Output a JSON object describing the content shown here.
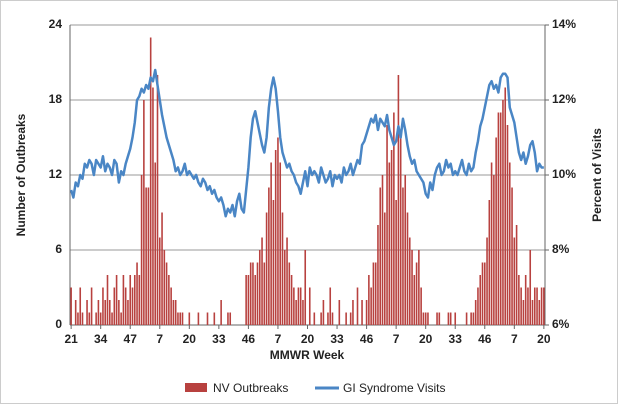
{
  "chart_data": {
    "type": "bar-line",
    "x_label": "MMWR Week",
    "y_label": "Number of Outbreaks",
    "y2_label": "Percent of Visits",
    "categories": [
      "21",
      null,
      null,
      null,
      null,
      null,
      null,
      null,
      null,
      null,
      null,
      null,
      null,
      "34",
      null,
      null,
      null,
      null,
      null,
      null,
      null,
      null,
      null,
      null,
      null,
      null,
      "47",
      null,
      null,
      null,
      null,
      null,
      null,
      null,
      null,
      null,
      null,
      null,
      null,
      "7",
      null,
      null,
      null,
      null,
      null,
      null,
      null,
      null,
      null,
      null,
      null,
      null,
      "20",
      null,
      null,
      null,
      null,
      null,
      null,
      null,
      null,
      null,
      null,
      null,
      null,
      "33",
      null,
      null,
      null,
      null,
      null,
      null,
      null,
      null,
      null,
      null,
      null,
      null,
      "46",
      null,
      null,
      null,
      null,
      null,
      null,
      null,
      null,
      null,
      null,
      null,
      null,
      "7",
      null,
      null,
      null,
      null,
      null,
      null,
      null,
      null,
      null,
      null,
      null,
      null,
      "20",
      null,
      null,
      null,
      null,
      null,
      null,
      null,
      null,
      null,
      null,
      null,
      null,
      "33",
      null,
      null,
      null,
      null,
      null,
      null,
      null,
      null,
      null,
      null,
      null,
      null,
      "46",
      null,
      null,
      null,
      null,
      null,
      null,
      null,
      null,
      null,
      null,
      null,
      null,
      "7",
      null,
      null,
      null,
      null,
      null,
      null,
      null,
      null,
      null,
      null,
      null,
      null,
      "20",
      null,
      null,
      null,
      null,
      null,
      null,
      null,
      null,
      null,
      null,
      null,
      null,
      "33",
      null,
      null,
      null,
      null,
      null,
      null,
      null,
      null,
      null,
      null,
      null,
      null,
      "46",
      null,
      null,
      null,
      null,
      null,
      null,
      null,
      null,
      null,
      null,
      null,
      null,
      "7",
      null,
      null,
      null,
      null,
      null,
      null,
      null,
      null,
      null,
      null,
      null,
      null,
      "20"
    ],
    "ylim": [
      0,
      24
    ],
    "yticks": [
      0,
      6,
      12,
      18,
      24
    ],
    "y2lim": [
      6,
      14
    ],
    "y2ticks": [
      {
        "value": 6,
        "label": "6%"
      },
      {
        "value": 8,
        "label": "8%"
      },
      {
        "value": 10,
        "label": "10%"
      },
      {
        "value": 12,
        "label": "12%"
      },
      {
        "value": 14,
        "label": "14%"
      }
    ],
    "grid": true,
    "legend": "bottom",
    "series": [
      {
        "name": "NV Outbreaks",
        "type": "bar",
        "color": "#b8413f",
        "values": [
          3,
          0,
          2,
          1,
          3,
          1,
          0,
          2,
          1,
          3,
          0,
          1,
          2,
          1,
          3,
          2,
          4,
          2,
          1,
          3,
          4,
          2,
          1,
          4,
          3,
          2,
          4,
          3,
          4,
          5,
          4,
          12,
          18,
          11,
          11,
          23,
          19,
          13,
          20,
          7,
          9,
          6,
          5,
          4,
          3,
          2,
          2,
          1,
          1,
          1,
          0,
          0,
          1,
          0,
          0,
          0,
          1,
          0,
          0,
          0,
          1,
          0,
          0,
          1,
          0,
          0,
          2,
          0,
          0,
          1,
          1,
          0,
          0,
          0,
          0,
          0,
          0,
          4,
          4,
          5,
          5,
          4,
          5,
          6,
          7,
          5,
          9,
          11,
          13,
          10,
          14,
          15,
          13,
          9,
          6,
          7,
          5,
          4,
          3,
          2,
          3,
          3,
          2,
          6,
          0,
          3,
          0,
          1,
          0,
          0,
          1,
          2,
          0,
          1,
          3,
          1,
          0,
          0,
          2,
          0,
          0,
          1,
          0,
          1,
          2,
          0,
          3,
          0,
          2,
          0,
          2,
          4,
          3,
          5,
          5,
          8,
          11,
          12,
          9,
          16,
          13,
          14,
          17,
          10,
          20,
          15,
          11,
          12,
          9,
          7,
          6,
          4,
          5,
          6,
          3,
          1,
          1,
          1,
          0,
          0,
          0,
          1,
          1,
          0,
          0,
          0,
          1,
          1,
          0,
          1,
          0,
          0,
          0,
          0,
          1,
          0,
          1,
          1,
          2,
          3,
          4,
          5,
          5,
          7,
          10,
          13,
          12,
          15,
          17,
          17,
          18,
          19,
          16,
          13,
          11,
          7,
          8,
          4,
          3,
          2,
          4,
          3,
          6,
          2,
          3,
          3,
          2,
          3,
          3
        ]
      },
      {
        "name": "GI Syndrome Visits",
        "type": "line",
        "axis": "y2",
        "color": "#4a86c5",
        "values": [
          9.6,
          9.4,
          9.8,
          9.7,
          10.0,
          9.9,
          10.3,
          10.2,
          10.4,
          10.3,
          10.0,
          10.4,
          10.3,
          10.2,
          10.5,
          10.1,
          10.3,
          10.2,
          10.0,
          10.4,
          10.3,
          9.8,
          10.1,
          10.0,
          10.3,
          10.5,
          10.7,
          11.0,
          11.4,
          12.0,
          12.1,
          12.3,
          12.2,
          12.4,
          12.3,
          12.6,
          12.5,
          12.8,
          12.4,
          12.0,
          11.6,
          11.3,
          11.0,
          10.8,
          10.6,
          10.4,
          10.1,
          10.2,
          10.0,
          10.1,
          10.3,
          10.0,
          10.1,
          10.0,
          9.9,
          10.0,
          9.8,
          9.7,
          9.9,
          9.8,
          9.6,
          9.7,
          9.5,
          9.6,
          9.4,
          9.3,
          9.4,
          9.2,
          8.9,
          9.1,
          9.0,
          9.2,
          8.9,
          9.3,
          9.5,
          9.1,
          9.0,
          9.6,
          10.2,
          11.0,
          11.5,
          11.7,
          11.4,
          11.1,
          10.8,
          10.6,
          11.0,
          11.8,
          12.3,
          12.6,
          12.3,
          11.7,
          11.0,
          10.6,
          10.4,
          10.2,
          10.3,
          10.1,
          10.0,
          9.8,
          9.7,
          9.5,
          9.8,
          10.1,
          9.7,
          10.2,
          10.0,
          10.1,
          10.0,
          9.8,
          10.2,
          10.0,
          9.8,
          9.9,
          10.1,
          9.7,
          10.0,
          9.9,
          10.0,
          9.8,
          10.2,
          10.0,
          10.1,
          10.3,
          10.0,
          10.2,
          10.4,
          10.3,
          10.8,
          10.9,
          11.1,
          11.3,
          11.5,
          11.4,
          11.6,
          11.2,
          11.5,
          11.4,
          11.3,
          11.6,
          11.2,
          11.0,
          10.8,
          10.9,
          11.3,
          11.0,
          11.5,
          11.2,
          10.8,
          10.5,
          10.3,
          10.4,
          10.1,
          10.0,
          9.9,
          9.8,
          9.5,
          9.4,
          9.8,
          9.6,
          10.0,
          10.2,
          10.3,
          10.0,
          10.1,
          10.4,
          10.2,
          10.3,
          10.0,
          10.1,
          10.0,
          10.2,
          10.4,
          10.1,
          10.0,
          10.3,
          10.1,
          10.2,
          10.6,
          10.9,
          11.3,
          11.5,
          11.8,
          12.1,
          12.4,
          12.5,
          12.3,
          12.4,
          12.2,
          12.6,
          12.7,
          12.7,
          12.6,
          11.8,
          11.6,
          11.4,
          11.0,
          10.6,
          10.4,
          10.6,
          10.3,
          10.5,
          10.8,
          10.9,
          10.6,
          10.1,
          10.3,
          10.2,
          10.2
        ]
      }
    ]
  }
}
